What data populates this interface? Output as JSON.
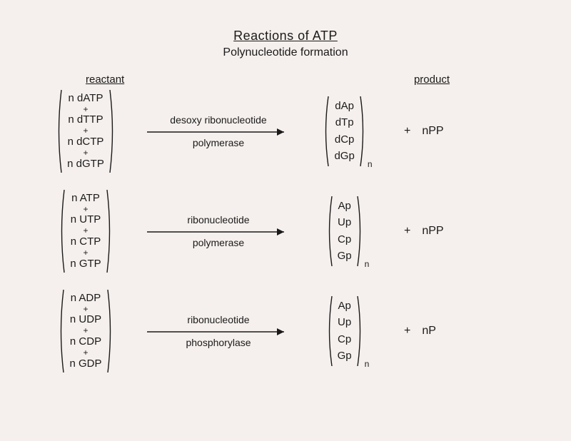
{
  "title": "Reactions of ATP",
  "subtitle": "Polynucleotide formation",
  "headers": {
    "left": "reactant",
    "right": "product"
  },
  "colors": {
    "text": "#1a1a1a",
    "bg": "#f5f0ed",
    "arrow": "#1a1a1a"
  },
  "font": {
    "title_size": 18,
    "body_size": 15
  },
  "reactions": [
    {
      "reactants": [
        "n dATP",
        "n dTTP",
        "n dCTP",
        "n dGTP"
      ],
      "enzyme_top": "desoxy ribonucleotide",
      "enzyme_bottom": "polymerase",
      "products": [
        "dAp",
        "dTp",
        "dCp",
        "dGp"
      ],
      "product_subscript": "n",
      "byproduct": "nPP"
    },
    {
      "reactants": [
        "n ATP",
        "n UTP",
        "n CTP",
        "n GTP"
      ],
      "enzyme_top": "ribonucleotide",
      "enzyme_bottom": "polymerase",
      "products": [
        "Ap",
        "Up",
        "Cp",
        "Gp"
      ],
      "product_subscript": "n",
      "byproduct": "nPP"
    },
    {
      "reactants": [
        "n ADP",
        "n UDP",
        "n CDP",
        "n GDP"
      ],
      "enzyme_top": "ribonucleotide",
      "enzyme_bottom": "phosphorylase",
      "products": [
        "Ap",
        "Up",
        "Cp",
        "Gp"
      ],
      "product_subscript": "n",
      "byproduct": "nP"
    }
  ]
}
